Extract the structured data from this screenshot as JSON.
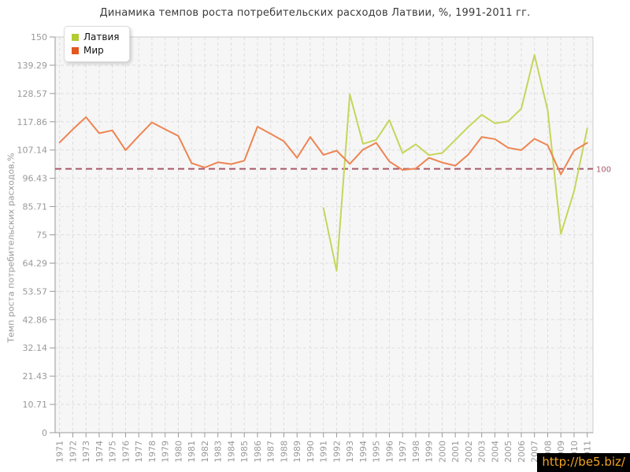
{
  "title": "Динамика темпов роста потребительских расходов Латвии, %, 1991-2011 гг.",
  "legend": {
    "items": [
      {
        "label": "Латвия",
        "color": "#b2cc33"
      },
      {
        "label": "Мир",
        "color": "#e2571f"
      }
    ]
  },
  "watermark": "http://be5.biz/",
  "chart_data": {
    "type": "line",
    "title": "Динамика темпов роста потребительских расходов Латвии, %, 1991-2011 гг.",
    "xlabel": "",
    "ylabel": "Темп роста потребительских расходов,%",
    "ylim": [
      0,
      150
    ],
    "grid": true,
    "legend_position": "top-left",
    "ytick_values": [
      0,
      10.714,
      21.429,
      32.143,
      42.857,
      53.571,
      64.286,
      75,
      85.714,
      96.429,
      107.143,
      117.857,
      128.571,
      139.286,
      150
    ],
    "ytick_labels": [
      "0",
      "10.71",
      "21.43",
      "32.14",
      "42.86",
      "53.57",
      "64.29",
      "75",
      "85.71",
      "96.43",
      "107.14",
      "117.86",
      "128.57",
      "139.29",
      "150"
    ],
    "categories": [
      "1971",
      "1972",
      "1973",
      "1974",
      "1975",
      "1976",
      "1977",
      "1978",
      "1979",
      "1980",
      "1981",
      "1982",
      "1983",
      "1984",
      "1985",
      "1986",
      "1987",
      "1988",
      "1989",
      "1990",
      "1991",
      "1992",
      "1993",
      "1994",
      "1995",
      "1996",
      "1997",
      "1998",
      "1999",
      "2000",
      "2001",
      "2002",
      "2003",
      "2004",
      "2005",
      "2006",
      "2007",
      "2008",
      "2009",
      "2010",
      "2011"
    ],
    "series": [
      {
        "id": "latvia",
        "name": "Латвия",
        "color": "#b2cc33",
        "line_color": "#c6d55c",
        "values": [
          null,
          null,
          null,
          null,
          null,
          null,
          null,
          null,
          null,
          null,
          null,
          null,
          null,
          null,
          null,
          null,
          null,
          null,
          null,
          null,
          85.2,
          61.3,
          128.3,
          109.5,
          111,
          118.5,
          106,
          109.3,
          105.2,
          106,
          111,
          116,
          120.5,
          117.3,
          118,
          122.8,
          143.2,
          122.3,
          75.3,
          91.5,
          115.3
        ]
      },
      {
        "id": "world",
        "name": "Мир",
        "color": "#e2571f",
        "line_color": "#ee8452",
        "values": [
          110,
          115,
          119.6,
          113.5,
          114.6,
          107.1,
          112.5,
          117.6,
          115,
          112.5,
          102.2,
          100.5,
          102.5,
          101.8,
          103.1,
          116,
          113.3,
          110.5,
          104.2,
          112.1,
          105.3,
          106.9,
          101.9,
          107.3,
          109.9,
          102.8,
          99.6,
          100.1,
          104.2,
          102.4,
          101.2,
          105.5,
          112.1,
          111.3,
          108,
          107.1,
          111.4,
          109,
          97.9,
          106.9,
          109.9
        ]
      }
    ],
    "reference_line": {
      "value": 100,
      "label": "100",
      "color": "#a85868"
    }
  }
}
